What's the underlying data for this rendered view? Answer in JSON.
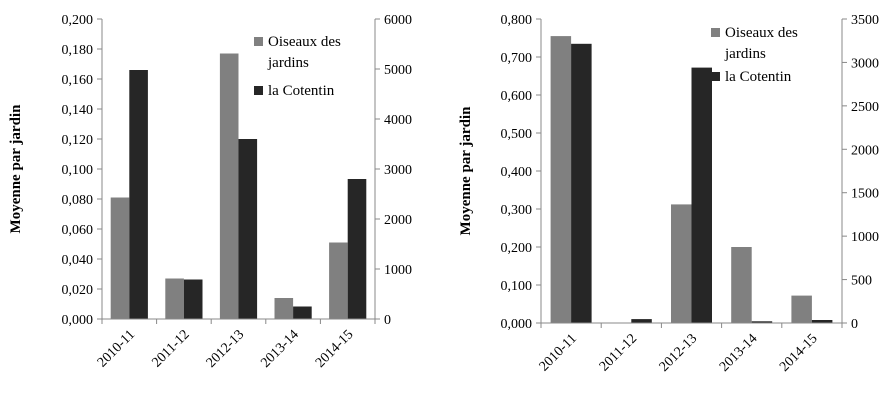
{
  "chart_data": [
    {
      "type": "bar",
      "categories": [
        "2010-11",
        "2011-12",
        "2012-13",
        "2013-14",
        "2014-15"
      ],
      "ylabel": "Moyenne par jardin",
      "ylim": [
        0,
        0.2
      ],
      "y_ticks": [
        "0,000",
        "0,020",
        "0,040",
        "0,060",
        "0,080",
        "0,100",
        "0,120",
        "0,140",
        "0,160",
        "0,180",
        "0,200"
      ],
      "y2lim": [
        0,
        6000
      ],
      "y2_ticks": [
        "0",
        "1000",
        "2000",
        "3000",
        "4000",
        "5000",
        "6000"
      ],
      "legend_position": "top-right",
      "series": [
        {
          "name": "Oiseaux des jardins",
          "axis": "left",
          "color": "#808080",
          "values": [
            0.081,
            0.027,
            0.177,
            0.014,
            0.051
          ]
        },
        {
          "name": "la Cotentin",
          "axis": "right",
          "color": "#262626",
          "values": [
            4980,
            790,
            3600,
            250,
            2800
          ]
        }
      ],
      "legend_lines": [
        [
          "Oiseaux des",
          "jardins"
        ],
        [
          "la Cotentin"
        ]
      ],
      "grid": false
    },
    {
      "type": "bar",
      "categories": [
        "2010-11",
        "2011-12",
        "2012-13",
        "2013-14",
        "2014-15"
      ],
      "ylabel": "Moyenne par jardin",
      "ylim": [
        0,
        0.8
      ],
      "y_ticks": [
        "0,000",
        "0,100",
        "0,200",
        "0,300",
        "0,400",
        "0,500",
        "0,600",
        "0,700",
        "0,800"
      ],
      "y2lim": [
        0,
        3500
      ],
      "y2_ticks": [
        "0",
        "500",
        "1000",
        "1500",
        "2000",
        "2500",
        "3000",
        "3500"
      ],
      "legend_position": "top-right",
      "series": [
        {
          "name": "Oiseaux des jardins",
          "axis": "left",
          "color": "#808080",
          "values": [
            0.755,
            0.0,
            0.312,
            0.2,
            0.072
          ]
        },
        {
          "name": "la Cotentin",
          "axis": "right",
          "color": "#262626",
          "values": [
            3215,
            45,
            2940,
            20,
            35
          ]
        }
      ],
      "legend_lines": [
        [
          "Oiseaux des",
          "jardins"
        ],
        [
          "la Cotentin"
        ]
      ],
      "grid": false
    }
  ]
}
